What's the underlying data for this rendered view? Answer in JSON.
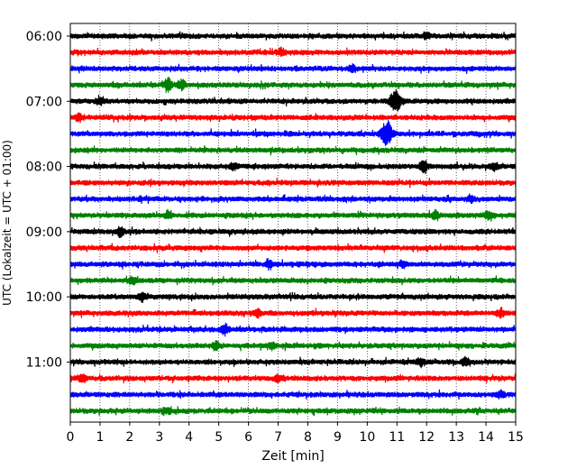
{
  "chart_data": {
    "type": "line",
    "title": "",
    "xlabel": "Zeit  [min]",
    "ylabel": "UTC (Lokalzeit = UTC + 01:00)",
    "xlim": [
      0,
      15
    ],
    "xticks": [
      0,
      1,
      2,
      3,
      4,
      5,
      6,
      7,
      8,
      9,
      10,
      11,
      12,
      13,
      14,
      15
    ],
    "xtick_labels": [
      "0",
      "1",
      "2",
      "3",
      "4",
      "5",
      "6",
      "7",
      "8",
      "9",
      "10",
      "11",
      "12",
      "13",
      "14",
      "15"
    ],
    "ytick_labels": [
      "06:00",
      "07:00",
      "08:00",
      "09:00",
      "10:00",
      "11:00"
    ],
    "ytick_trace_index": [
      0,
      4,
      8,
      12,
      16,
      20
    ],
    "vertical_grid": "dotted",
    "legend": "none",
    "colors": [
      "#000000",
      "#ff0000",
      "#0000ff",
      "#008000"
    ],
    "trace_count": 24,
    "events": [
      {
        "trace": 0,
        "x": 12.0,
        "amp": 0.35
      },
      {
        "trace": 1,
        "x": 7.1,
        "amp": 0.4
      },
      {
        "trace": 2,
        "x": 9.5,
        "amp": 0.35
      },
      {
        "trace": 3,
        "x": 3.3,
        "amp": 0.75
      },
      {
        "trace": 3,
        "x": 3.75,
        "amp": 0.6
      },
      {
        "trace": 4,
        "x": 10.95,
        "amp": 1.3
      },
      {
        "trace": 4,
        "x": 1.0,
        "amp": 0.35
      },
      {
        "trace": 5,
        "x": 0.3,
        "amp": 0.4
      },
      {
        "trace": 6,
        "x": 10.65,
        "amp": 1.5
      },
      {
        "trace": 8,
        "x": 11.9,
        "amp": 0.9
      },
      {
        "trace": 8,
        "x": 5.5,
        "amp": 0.35
      },
      {
        "trace": 8,
        "x": 14.3,
        "amp": 0.4
      },
      {
        "trace": 10,
        "x": 13.5,
        "amp": 0.3
      },
      {
        "trace": 11,
        "x": 3.3,
        "amp": 0.4
      },
      {
        "trace": 11,
        "x": 12.3,
        "amp": 0.4
      },
      {
        "trace": 11,
        "x": 14.1,
        "amp": 0.45
      },
      {
        "trace": 12,
        "x": 1.7,
        "amp": 0.5
      },
      {
        "trace": 14,
        "x": 6.7,
        "amp": 0.55
      },
      {
        "trace": 14,
        "x": 11.2,
        "amp": 0.35
      },
      {
        "trace": 15,
        "x": 2.1,
        "amp": 0.4
      },
      {
        "trace": 16,
        "x": 2.4,
        "amp": 0.35
      },
      {
        "trace": 17,
        "x": 6.3,
        "amp": 0.35
      },
      {
        "trace": 17,
        "x": 14.5,
        "amp": 0.4
      },
      {
        "trace": 18,
        "x": 5.2,
        "amp": 0.55
      },
      {
        "trace": 19,
        "x": 4.9,
        "amp": 0.45
      },
      {
        "trace": 19,
        "x": 6.8,
        "amp": 0.4
      },
      {
        "trace": 20,
        "x": 13.3,
        "amp": 0.5
      },
      {
        "trace": 20,
        "x": 11.8,
        "amp": 0.4
      },
      {
        "trace": 21,
        "x": 0.4,
        "amp": 0.5
      },
      {
        "trace": 21,
        "x": 7.0,
        "amp": 0.35
      },
      {
        "trace": 22,
        "x": 14.5,
        "amp": 0.35
      },
      {
        "trace": 23,
        "x": 3.2,
        "amp": 0.3
      }
    ]
  }
}
